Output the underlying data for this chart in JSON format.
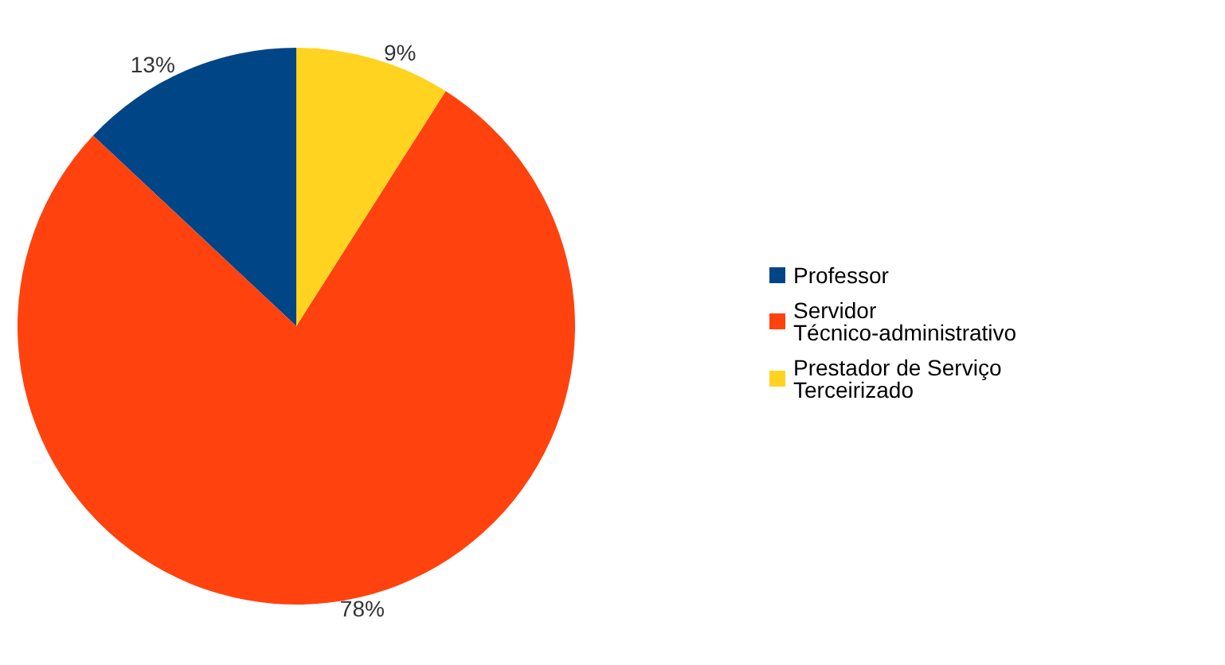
{
  "chart_data": {
    "type": "pie",
    "categories": [
      "Professor",
      "Servidor Técnico-administrativo",
      "Prestador de Serviço Terceirizado"
    ],
    "values": [
      13,
      78,
      9
    ],
    "colors": [
      "#004586",
      "#ff420e",
      "#ffd320"
    ],
    "value_labels": [
      "13%",
      "78%",
      "9%"
    ],
    "legend": "right"
  }
}
